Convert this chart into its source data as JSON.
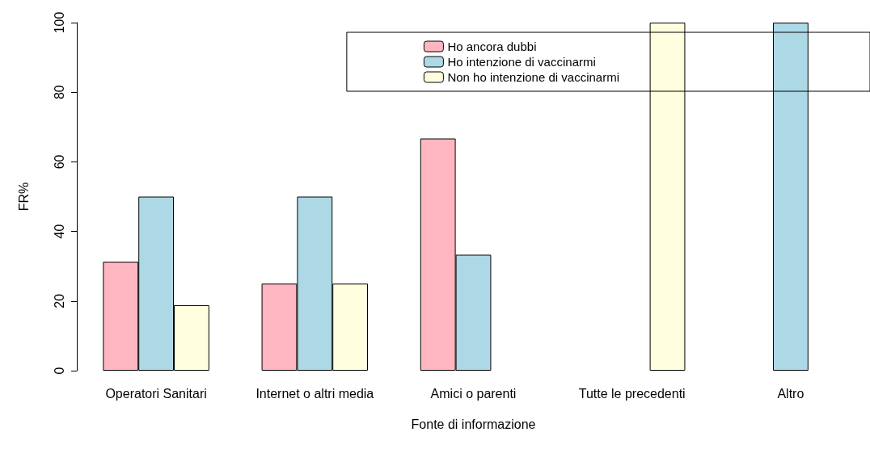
{
  "chart_data": {
    "type": "bar",
    "xlabel": "Fonte di informazione",
    "ylabel": "FR%",
    "categories": [
      "Operatori Sanitari",
      "Internet o altri media",
      "Amici o parenti",
      "Tutte le precedenti",
      "Altro"
    ],
    "series": [
      {
        "name": "Ho ancora dubbi",
        "color": "#ffb6c1",
        "values": [
          31.3,
          25,
          66.7,
          0,
          0
        ]
      },
      {
        "name": "Ho intenzione di vaccinarmi",
        "color": "#add8e6",
        "values": [
          50,
          50,
          33.3,
          0,
          100
        ]
      },
      {
        "name": "Non ho intenzione di vaccinarmi",
        "color": "#ffffe0",
        "values": [
          18.8,
          25,
          0,
          100,
          0
        ]
      }
    ],
    "ylim": [
      0,
      100
    ],
    "yticks": [
      0,
      20,
      40,
      60,
      80,
      100
    ],
    "grid": false,
    "legend": "top right"
  }
}
